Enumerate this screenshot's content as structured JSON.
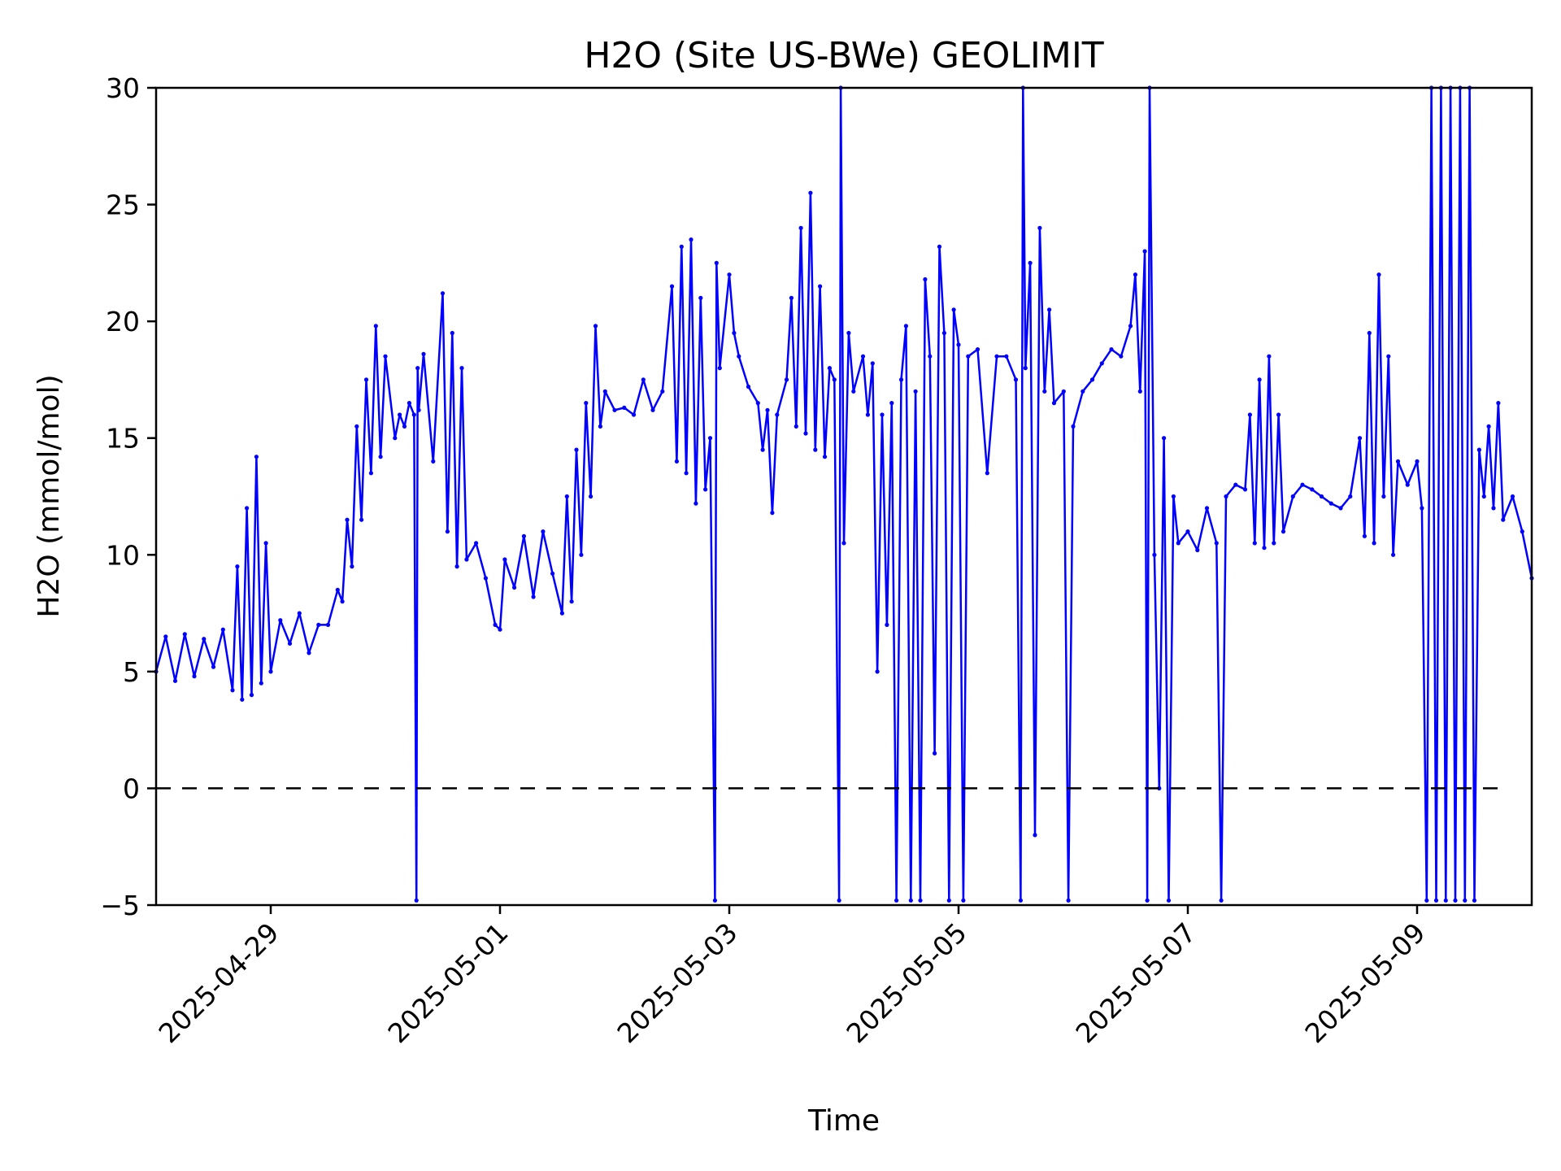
{
  "chart_data": {
    "type": "scatter",
    "title": "H2O (Site US-BWe) GEOLIMIT",
    "xlabel": "Time",
    "ylabel": "H2O (mmol/mol)",
    "xlim": [
      "2025-04-28T00:00",
      "2025-05-10T00:00"
    ],
    "ylim": [
      -5,
      30
    ],
    "x_ticks": [
      "2025-04-29",
      "2025-05-01",
      "2025-05-03",
      "2025-05-05",
      "2025-05-07",
      "2025-05-09"
    ],
    "y_ticks": [
      -5,
      0,
      5,
      10,
      15,
      20,
      25,
      30
    ],
    "grid": false,
    "reference_line": {
      "y": 0,
      "style": "dashed",
      "color": "#000000"
    },
    "series": [
      {
        "color": "#0000ff",
        "marker": "dot",
        "points": [
          [
            "2025-04-28T00:00",
            5.0
          ],
          [
            "2025-04-28T02:00",
            6.5
          ],
          [
            "2025-04-28T04:00",
            4.6
          ],
          [
            "2025-04-28T06:00",
            6.6
          ],
          [
            "2025-04-28T08:00",
            4.8
          ],
          [
            "2025-04-28T10:00",
            6.4
          ],
          [
            "2025-04-28T12:00",
            5.2
          ],
          [
            "2025-04-28T14:00",
            6.8
          ],
          [
            "2025-04-28T16:00",
            4.2
          ],
          [
            "2025-04-28T17:00",
            9.5
          ],
          [
            "2025-04-28T18:00",
            3.8
          ],
          [
            "2025-04-28T19:00",
            12.0
          ],
          [
            "2025-04-28T20:00",
            4.0
          ],
          [
            "2025-04-28T21:00",
            14.2
          ],
          [
            "2025-04-28T22:00",
            4.5
          ],
          [
            "2025-04-28T23:00",
            10.5
          ],
          [
            "2025-04-29T00:00",
            5.0
          ],
          [
            "2025-04-29T02:00",
            7.2
          ],
          [
            "2025-04-29T04:00",
            6.2
          ],
          [
            "2025-04-29T06:00",
            7.5
          ],
          [
            "2025-04-29T08:00",
            5.8
          ],
          [
            "2025-04-29T10:00",
            7.0
          ],
          [
            "2025-04-29T12:00",
            7.0
          ],
          [
            "2025-04-29T14:00",
            8.5
          ],
          [
            "2025-04-29T15:00",
            8.0
          ],
          [
            "2025-04-29T16:00",
            11.5
          ],
          [
            "2025-04-29T17:00",
            9.5
          ],
          [
            "2025-04-29T18:00",
            15.5
          ],
          [
            "2025-04-29T19:00",
            11.5
          ],
          [
            "2025-04-29T20:00",
            17.5
          ],
          [
            "2025-04-29T21:00",
            13.5
          ],
          [
            "2025-04-29T22:00",
            19.8
          ],
          [
            "2025-04-29T23:00",
            14.2
          ],
          [
            "2025-04-30T00:00",
            18.5
          ],
          [
            "2025-04-30T02:00",
            15.0
          ],
          [
            "2025-04-30T03:00",
            16.0
          ],
          [
            "2025-04-30T04:00",
            15.5
          ],
          [
            "2025-04-30T05:00",
            16.5
          ],
          [
            "2025-04-30T06:00",
            16.0
          ],
          [
            "2025-04-30T06:30",
            -4.8
          ],
          [
            "2025-04-30T06:45",
            18.0
          ],
          [
            "2025-04-30T07:00",
            16.2
          ],
          [
            "2025-04-30T08:00",
            18.6
          ],
          [
            "2025-04-30T10:00",
            14.0
          ],
          [
            "2025-04-30T12:00",
            21.2
          ],
          [
            "2025-04-30T13:00",
            11.0
          ],
          [
            "2025-04-30T14:00",
            19.5
          ],
          [
            "2025-04-30T15:00",
            9.5
          ],
          [
            "2025-04-30T16:00",
            18.0
          ],
          [
            "2025-04-30T17:00",
            9.8
          ],
          [
            "2025-04-30T19:00",
            10.5
          ],
          [
            "2025-04-30T21:00",
            9.0
          ],
          [
            "2025-04-30T23:00",
            7.0
          ],
          [
            "2025-05-01T00:00",
            6.8
          ],
          [
            "2025-05-01T01:00",
            9.8
          ],
          [
            "2025-05-01T03:00",
            8.6
          ],
          [
            "2025-05-01T05:00",
            10.8
          ],
          [
            "2025-05-01T07:00",
            8.2
          ],
          [
            "2025-05-01T09:00",
            11.0
          ],
          [
            "2025-05-01T11:00",
            9.2
          ],
          [
            "2025-05-01T13:00",
            7.5
          ],
          [
            "2025-05-01T14:00",
            12.5
          ],
          [
            "2025-05-01T15:00",
            8.0
          ],
          [
            "2025-05-01T16:00",
            14.5
          ],
          [
            "2025-05-01T17:00",
            10.0
          ],
          [
            "2025-05-01T18:00",
            16.5
          ],
          [
            "2025-05-01T19:00",
            12.5
          ],
          [
            "2025-05-01T20:00",
            19.8
          ],
          [
            "2025-05-01T21:00",
            15.5
          ],
          [
            "2025-05-01T22:00",
            17.0
          ],
          [
            "2025-05-02T00:00",
            16.2
          ],
          [
            "2025-05-02T02:00",
            16.3
          ],
          [
            "2025-05-02T04:00",
            16.0
          ],
          [
            "2025-05-02T06:00",
            17.5
          ],
          [
            "2025-05-02T08:00",
            16.2
          ],
          [
            "2025-05-02T10:00",
            17.0
          ],
          [
            "2025-05-02T12:00",
            21.5
          ],
          [
            "2025-05-02T13:00",
            14.0
          ],
          [
            "2025-05-02T14:00",
            23.2
          ],
          [
            "2025-05-02T15:00",
            13.5
          ],
          [
            "2025-05-02T16:00",
            23.5
          ],
          [
            "2025-05-02T17:00",
            12.2
          ],
          [
            "2025-05-02T18:00",
            21.0
          ],
          [
            "2025-05-02T19:00",
            12.8
          ],
          [
            "2025-05-02T20:00",
            15.0
          ],
          [
            "2025-05-02T21:00",
            -4.8
          ],
          [
            "2025-05-02T21:20",
            22.5
          ],
          [
            "2025-05-02T22:00",
            18.0
          ],
          [
            "2025-05-03T00:00",
            22.0
          ],
          [
            "2025-05-03T01:00",
            19.5
          ],
          [
            "2025-05-03T02:00",
            18.5
          ],
          [
            "2025-05-03T04:00",
            17.2
          ],
          [
            "2025-05-03T06:00",
            16.5
          ],
          [
            "2025-05-03T07:00",
            14.5
          ],
          [
            "2025-05-03T08:00",
            16.2
          ],
          [
            "2025-05-03T09:00",
            11.8
          ],
          [
            "2025-05-03T10:00",
            16.0
          ],
          [
            "2025-05-03T12:00",
            17.5
          ],
          [
            "2025-05-03T13:00",
            21.0
          ],
          [
            "2025-05-03T14:00",
            15.5
          ],
          [
            "2025-05-03T15:00",
            24.0
          ],
          [
            "2025-05-03T16:00",
            15.2
          ],
          [
            "2025-05-03T17:00",
            25.5
          ],
          [
            "2025-05-03T18:00",
            14.5
          ],
          [
            "2025-05-03T19:00",
            21.5
          ],
          [
            "2025-05-03T20:00",
            14.2
          ],
          [
            "2025-05-03T21:00",
            18.0
          ],
          [
            "2025-05-03T22:00",
            17.5
          ],
          [
            "2025-05-03T23:00",
            -4.8
          ],
          [
            "2025-05-03T23:20",
            30.0
          ],
          [
            "2025-05-04T00:00",
            10.5
          ],
          [
            "2025-05-04T01:00",
            19.5
          ],
          [
            "2025-05-04T02:00",
            17.0
          ],
          [
            "2025-05-04T04:00",
            18.5
          ],
          [
            "2025-05-04T05:00",
            16.0
          ],
          [
            "2025-05-04T06:00",
            18.2
          ],
          [
            "2025-05-04T07:00",
            5.0
          ],
          [
            "2025-05-04T08:00",
            16.0
          ],
          [
            "2025-05-04T09:00",
            7.0
          ],
          [
            "2025-05-04T10:00",
            16.5
          ],
          [
            "2025-05-04T11:00",
            -4.8
          ],
          [
            "2025-05-04T12:00",
            17.5
          ],
          [
            "2025-05-04T13:00",
            19.8
          ],
          [
            "2025-05-04T14:00",
            -4.8
          ],
          [
            "2025-05-04T15:00",
            17.0
          ],
          [
            "2025-05-04T16:00",
            -4.8
          ],
          [
            "2025-05-04T17:00",
            21.8
          ],
          [
            "2025-05-04T18:00",
            18.5
          ],
          [
            "2025-05-04T19:00",
            1.5
          ],
          [
            "2025-05-04T20:00",
            23.2
          ],
          [
            "2025-05-04T21:00",
            19.5
          ],
          [
            "2025-05-04T22:00",
            -4.8
          ],
          [
            "2025-05-04T23:00",
            20.5
          ],
          [
            "2025-05-05T00:00",
            19.0
          ],
          [
            "2025-05-05T01:00",
            -4.8
          ],
          [
            "2025-05-05T02:00",
            18.5
          ],
          [
            "2025-05-05T04:00",
            18.8
          ],
          [
            "2025-05-05T06:00",
            13.5
          ],
          [
            "2025-05-05T08:00",
            18.5
          ],
          [
            "2025-05-05T10:00",
            18.5
          ],
          [
            "2025-05-05T12:00",
            17.5
          ],
          [
            "2025-05-05T13:00",
            -4.8
          ],
          [
            "2025-05-05T13:30",
            30.0
          ],
          [
            "2025-05-05T14:00",
            18.0
          ],
          [
            "2025-05-05T15:00",
            22.5
          ],
          [
            "2025-05-05T16:00",
            -2.0
          ],
          [
            "2025-05-05T17:00",
            24.0
          ],
          [
            "2025-05-05T18:00",
            17.0
          ],
          [
            "2025-05-05T19:00",
            20.5
          ],
          [
            "2025-05-05T20:00",
            16.5
          ],
          [
            "2025-05-05T22:00",
            17.0
          ],
          [
            "2025-05-05T23:00",
            -4.8
          ],
          [
            "2025-05-06T00:00",
            15.5
          ],
          [
            "2025-05-06T02:00",
            17.0
          ],
          [
            "2025-05-06T04:00",
            17.5
          ],
          [
            "2025-05-06T06:00",
            18.2
          ],
          [
            "2025-05-06T08:00",
            18.8
          ],
          [
            "2025-05-06T10:00",
            18.5
          ],
          [
            "2025-05-06T12:00",
            19.8
          ],
          [
            "2025-05-06T13:00",
            22.0
          ],
          [
            "2025-05-06T14:00",
            17.0
          ],
          [
            "2025-05-06T15:00",
            23.0
          ],
          [
            "2025-05-06T15:30",
            -4.8
          ],
          [
            "2025-05-06T16:00",
            30.0
          ],
          [
            "2025-05-06T17:00",
            10.0
          ],
          [
            "2025-05-06T18:00",
            0.0
          ],
          [
            "2025-05-06T19:00",
            15.0
          ],
          [
            "2025-05-06T20:00",
            -4.8
          ],
          [
            "2025-05-06T21:00",
            12.5
          ],
          [
            "2025-05-06T22:00",
            10.5
          ],
          [
            "2025-05-07T00:00",
            11.0
          ],
          [
            "2025-05-07T02:00",
            10.2
          ],
          [
            "2025-05-07T04:00",
            12.0
          ],
          [
            "2025-05-07T06:00",
            10.5
          ],
          [
            "2025-05-07T07:00",
            -4.8
          ],
          [
            "2025-05-07T08:00",
            12.5
          ],
          [
            "2025-05-07T10:00",
            13.0
          ],
          [
            "2025-05-07T12:00",
            12.8
          ],
          [
            "2025-05-07T13:00",
            16.0
          ],
          [
            "2025-05-07T14:00",
            10.5
          ],
          [
            "2025-05-07T15:00",
            17.5
          ],
          [
            "2025-05-07T16:00",
            10.3
          ],
          [
            "2025-05-07T17:00",
            18.5
          ],
          [
            "2025-05-07T18:00",
            10.5
          ],
          [
            "2025-05-07T19:00",
            16.0
          ],
          [
            "2025-05-07T20:00",
            11.0
          ],
          [
            "2025-05-07T22:00",
            12.5
          ],
          [
            "2025-05-08T00:00",
            13.0
          ],
          [
            "2025-05-08T02:00",
            12.8
          ],
          [
            "2025-05-08T04:00",
            12.5
          ],
          [
            "2025-05-08T06:00",
            12.2
          ],
          [
            "2025-05-08T08:00",
            12.0
          ],
          [
            "2025-05-08T10:00",
            12.5
          ],
          [
            "2025-05-08T12:00",
            15.0
          ],
          [
            "2025-05-08T13:00",
            10.8
          ],
          [
            "2025-05-08T14:00",
            19.5
          ],
          [
            "2025-05-08T15:00",
            10.5
          ],
          [
            "2025-05-08T16:00",
            22.0
          ],
          [
            "2025-05-08T17:00",
            12.5
          ],
          [
            "2025-05-08T18:00",
            18.5
          ],
          [
            "2025-05-08T19:00",
            10.0
          ],
          [
            "2025-05-08T20:00",
            14.0
          ],
          [
            "2025-05-08T22:00",
            13.0
          ],
          [
            "2025-05-09T00:00",
            14.0
          ],
          [
            "2025-05-09T01:00",
            12.0
          ],
          [
            "2025-05-09T02:00",
            -4.8
          ],
          [
            "2025-05-09T03:00",
            30.0
          ],
          [
            "2025-05-09T04:00",
            -4.8
          ],
          [
            "2025-05-09T05:00",
            30.0
          ],
          [
            "2025-05-09T06:00",
            -4.8
          ],
          [
            "2025-05-09T07:00",
            30.0
          ],
          [
            "2025-05-09T08:00",
            -4.8
          ],
          [
            "2025-05-09T09:00",
            30.0
          ],
          [
            "2025-05-09T10:00",
            -4.8
          ],
          [
            "2025-05-09T11:00",
            30.0
          ],
          [
            "2025-05-09T12:00",
            -4.8
          ],
          [
            "2025-05-09T13:00",
            14.5
          ],
          [
            "2025-05-09T14:00",
            12.5
          ],
          [
            "2025-05-09T15:00",
            15.5
          ],
          [
            "2025-05-09T16:00",
            12.0
          ],
          [
            "2025-05-09T17:00",
            16.5
          ],
          [
            "2025-05-09T18:00",
            11.5
          ],
          [
            "2025-05-09T20:00",
            12.5
          ],
          [
            "2025-05-09T22:00",
            11.0
          ],
          [
            "2025-05-10T00:00",
            9.0
          ]
        ]
      }
    ]
  }
}
